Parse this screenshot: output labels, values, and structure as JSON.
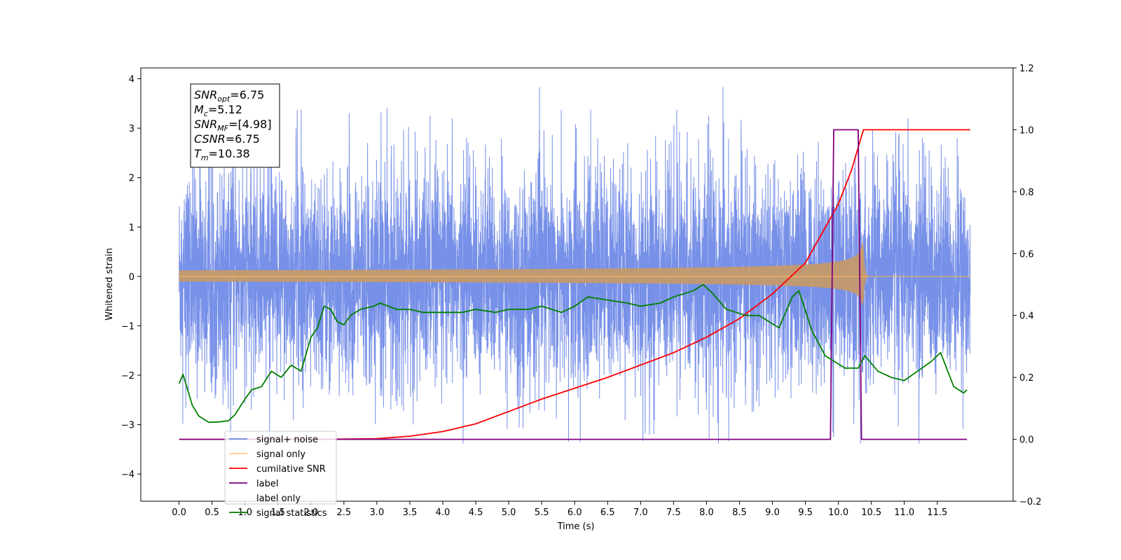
{
  "chart_data": {
    "type": "line",
    "xlabel": "Time (s)",
    "ylabel_left": "Whitened strain",
    "ylabel_right": "",
    "xlim": [
      -0.58,
      12.65
    ],
    "ylim_left": [
      -4.55,
      4.22
    ],
    "ylim_right": [
      -0.2,
      1.2
    ],
    "x_ticks": [
      0.0,
      0.5,
      1.0,
      1.5,
      2.0,
      2.5,
      3.0,
      3.5,
      4.0,
      4.5,
      5.0,
      5.5,
      6.0,
      6.5,
      7.0,
      7.5,
      8.0,
      8.5,
      9.0,
      9.5,
      10.0,
      10.5,
      11.0,
      11.5
    ],
    "x_tick_labels": [
      "0.0",
      "0.5",
      "1.0",
      "1.5",
      "2.0",
      "2.5",
      "3.0",
      "3.5",
      "4.0",
      "4.5",
      "5.0",
      "5.5",
      "6.0",
      "6.5",
      "7.0",
      "7.5",
      "8.0",
      "8.5",
      "9.0",
      "9.5",
      "10.0",
      "10.5",
      "11.0",
      "11.5"
    ],
    "y_left_ticks": [
      4,
      3,
      2,
      1,
      0,
      -1,
      -2,
      -3,
      -4
    ],
    "y_left_tick_labels": [
      "4",
      "3",
      "2",
      "1",
      "0",
      "−1",
      "−2",
      "−3",
      "−4"
    ],
    "y_right_ticks": [
      1.2,
      1.0,
      0.8,
      0.6,
      0.4,
      0.2,
      0.0,
      -0.2
    ],
    "y_right_tick_labels": [
      "1.2",
      "1.0",
      "0.8",
      "0.6",
      "0.4",
      "0.2",
      "0.0",
      "−0.2"
    ],
    "grid": false,
    "legend_position": "lower-left",
    "series": [
      {
        "name": "signal+ noise",
        "color": "#6b87e6",
        "axis": "left",
        "style": "noise-band",
        "x_range": [
          0.0,
          12.0
        ],
        "typical_amplitude": 1.2,
        "peak_max": 3.83,
        "peak_min": -3.38
      },
      {
        "name": "signal only",
        "color": "#ffb74d",
        "axis": "left",
        "style": "chirp",
        "x_range": [
          0.0,
          12.0
        ],
        "merger_time": 10.38,
        "peak_amplitude": 0.72
      },
      {
        "name": "cumilative SNR",
        "color": "#ff0000",
        "axis": "right",
        "x": [
          0.0,
          2.0,
          3.0,
          3.5,
          4.0,
          4.5,
          5.0,
          5.5,
          6.0,
          6.5,
          7.0,
          7.5,
          8.0,
          8.5,
          9.0,
          9.5,
          10.0,
          10.2,
          10.38,
          11.0,
          12.0
        ],
        "values": [
          0.0,
          0.0,
          0.002,
          0.01,
          0.025,
          0.05,
          0.09,
          0.13,
          0.165,
          0.2,
          0.24,
          0.28,
          0.33,
          0.39,
          0.47,
          0.57,
          0.76,
          0.87,
          1.0,
          1.0,
          1.0
        ]
      },
      {
        "name": "label",
        "color": "#800080",
        "axis": "right",
        "x": [
          0.0,
          9.88,
          9.93,
          10.3,
          10.35,
          11.95
        ],
        "values": [
          0,
          0,
          1,
          1,
          0,
          0
        ]
      },
      {
        "name": "label only",
        "color": "#ffffff",
        "axis": "right",
        "x": [],
        "values": []
      },
      {
        "name": "signal statistics",
        "color": "#008000",
        "axis": "right",
        "x": [
          0.0,
          0.06,
          0.2,
          0.3,
          0.45,
          0.6,
          0.75,
          0.85,
          1.0,
          1.1,
          1.25,
          1.4,
          1.55,
          1.7,
          1.85,
          2.0,
          2.1,
          2.2,
          2.3,
          2.4,
          2.5,
          2.6,
          2.75,
          2.95,
          3.05,
          3.3,
          3.5,
          3.7,
          4.0,
          4.3,
          4.5,
          4.8,
          5.0,
          5.3,
          5.5,
          5.8,
          6.0,
          6.2,
          6.5,
          6.8,
          7.0,
          7.3,
          7.5,
          7.8,
          7.95,
          8.1,
          8.3,
          8.6,
          8.8,
          8.95,
          9.1,
          9.3,
          9.4,
          9.6,
          9.8,
          9.95,
          10.1,
          10.3,
          10.4,
          10.6,
          10.8,
          11.0,
          11.2,
          11.4,
          11.55,
          11.75,
          11.9,
          11.95
        ],
        "values": [
          0.18,
          0.21,
          0.11,
          0.075,
          0.055,
          0.056,
          0.06,
          0.08,
          0.13,
          0.16,
          0.17,
          0.22,
          0.2,
          0.24,
          0.22,
          0.33,
          0.36,
          0.43,
          0.42,
          0.38,
          0.37,
          0.4,
          0.42,
          0.43,
          0.44,
          0.42,
          0.42,
          0.41,
          0.41,
          0.41,
          0.42,
          0.41,
          0.42,
          0.42,
          0.43,
          0.41,
          0.43,
          0.46,
          0.45,
          0.44,
          0.43,
          0.44,
          0.46,
          0.48,
          0.5,
          0.47,
          0.42,
          0.4,
          0.4,
          0.38,
          0.36,
          0.46,
          0.48,
          0.35,
          0.27,
          0.25,
          0.23,
          0.23,
          0.27,
          0.22,
          0.2,
          0.19,
          0.22,
          0.25,
          0.28,
          0.17,
          0.15,
          0.16
        ]
      }
    ],
    "annotation": {
      "lines": [
        {
          "main": "SNR",
          "sub": "opt",
          "value": "=6.75"
        },
        {
          "main": "M",
          "sub": "c",
          "value": "=5.12"
        },
        {
          "main": "SNR",
          "sub": "MF",
          "value": "=[4.98]"
        },
        {
          "main": "CSNR",
          "sub": "",
          "value": "=6.75"
        },
        {
          "main": "T",
          "sub": "m",
          "value": "=10.38"
        }
      ]
    }
  }
}
